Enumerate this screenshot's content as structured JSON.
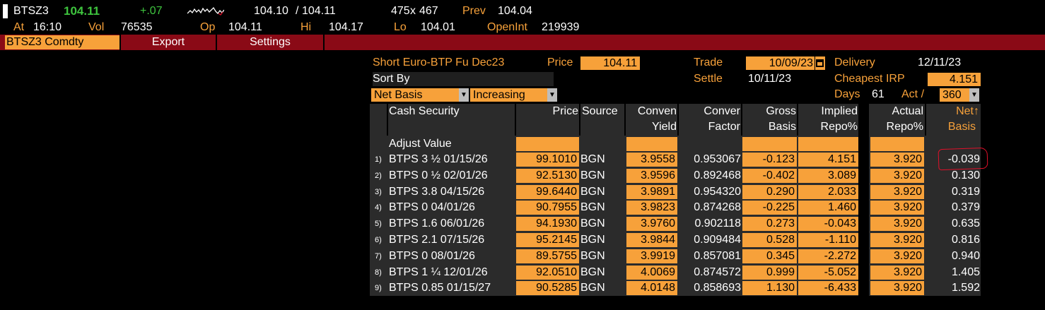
{
  "quote": {
    "ticker": "BTSZ3",
    "last": "104.11",
    "change": "+.07",
    "bid": "104.10",
    "ask": "104.11",
    "bid_size": "475",
    "ask_size": "467",
    "prev_label": "Prev",
    "prev": "104.04",
    "at_label": "At",
    "at_time": "16:10",
    "vol_label": "Vol",
    "vol": "76535",
    "op_label": "Op",
    "op": "104.11",
    "hi_label": "Hi",
    "hi": "104.17",
    "lo_label": "Lo",
    "lo": "104.01",
    "openint_label": "OpenInt",
    "openint": "219939"
  },
  "menu": {
    "security": "BTSZ3 Comdty",
    "export": "Export",
    "settings": "Settings"
  },
  "params": {
    "contract": "Short Euro-BTP Fu Dec23",
    "price_label": "Price",
    "price": "104.11",
    "trade_label": "Trade",
    "trade_date": "10/09/23",
    "delivery_label": "Delivery",
    "delivery_date": "12/11/23",
    "settle_label": "Settle",
    "settle_date": "10/11/23",
    "cheapest_irp_label": "Cheapest IRP",
    "cheapest_irp": "4.151",
    "sort_by_label": "Sort By",
    "sort_field": "Net Basis",
    "sort_order": "Increasing",
    "days_label": "Days",
    "days": "61",
    "act_label": "Act /",
    "act_value": "360"
  },
  "table": {
    "headers": {
      "security": "Cash Security",
      "price": "Price",
      "source": "Source",
      "yield1": "Conven",
      "yield2": "Yield",
      "factor1": "Conver",
      "factor2": "Factor",
      "gross1": "Gross",
      "gross2": "Basis",
      "implied1": "Implied",
      "implied2": "Repo%",
      "actual1": "Actual",
      "actual2": "Repo%",
      "net1": "Net",
      "net2": "Basis",
      "sort_arrow": "↑"
    },
    "adjust_label": "Adjust Value",
    "rows": [
      {
        "num": "1)",
        "security": "BTPS 3 ½ 01/15/26",
        "price": "99.1010",
        "source": "BGN",
        "yield": "3.9558",
        "factor": "0.953067",
        "gross": "-0.123",
        "implied": "4.151",
        "actual": "3.920",
        "net": "-0.039"
      },
      {
        "num": "2)",
        "security": "BTPS 0 ½ 02/01/26",
        "price": "92.5130",
        "source": "BGN",
        "yield": "3.9596",
        "factor": "0.892468",
        "gross": "-0.402",
        "implied": "3.089",
        "actual": "3.920",
        "net": "0.130"
      },
      {
        "num": "3)",
        "security": "BTPS 3.8 04/15/26",
        "price": "99.6440",
        "source": "BGN",
        "yield": "3.9891",
        "factor": "0.954320",
        "gross": "0.290",
        "implied": "2.033",
        "actual": "3.920",
        "net": "0.319"
      },
      {
        "num": "4)",
        "security": "BTPS 0 04/01/26",
        "price": "90.7955",
        "source": "BGN",
        "yield": "3.9823",
        "factor": "0.874268",
        "gross": "-0.225",
        "implied": "1.460",
        "actual": "3.920",
        "net": "0.379"
      },
      {
        "num": "5)",
        "security": "BTPS 1.6 06/01/26",
        "price": "94.1930",
        "source": "BGN",
        "yield": "3.9760",
        "factor": "0.902118",
        "gross": "0.273",
        "implied": "-0.043",
        "actual": "3.920",
        "net": "0.635"
      },
      {
        "num": "6)",
        "security": "BTPS 2.1 07/15/26",
        "price": "95.2145",
        "source": "BGN",
        "yield": "3.9844",
        "factor": "0.909484",
        "gross": "0.528",
        "implied": "-1.110",
        "actual": "3.920",
        "net": "0.816"
      },
      {
        "num": "7)",
        "security": "BTPS 0 08/01/26",
        "price": "89.5755",
        "source": "BGN",
        "yield": "3.9919",
        "factor": "0.857081",
        "gross": "0.345",
        "implied": "-2.272",
        "actual": "3.920",
        "net": "0.940"
      },
      {
        "num": "8)",
        "security": "BTPS 1 ¼ 12/01/26",
        "price": "92.0510",
        "source": "BGN",
        "yield": "4.0069",
        "factor": "0.874572",
        "gross": "0.999",
        "implied": "-5.052",
        "actual": "3.920",
        "net": "1.405"
      },
      {
        "num": "9)",
        "security": "BTPS 0.85 01/15/27",
        "price": "90.5285",
        "source": "BGN",
        "yield": "4.0148",
        "factor": "0.858693",
        "gross": "1.130",
        "implied": "-6.433",
        "actual": "3.920",
        "net": "1.592"
      }
    ]
  }
}
